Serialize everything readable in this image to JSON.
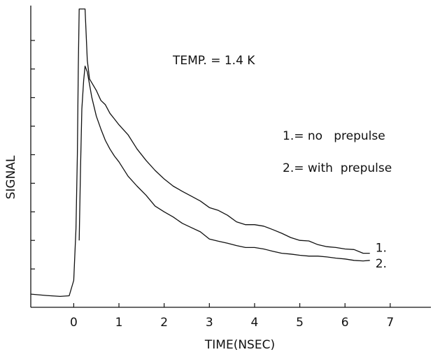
{
  "chart_data": {
    "type": "line",
    "xlabel": "TIME(NSEC)",
    "ylabel": "SIGNAL",
    "xlim": [
      -0.95,
      7.9
    ],
    "ylim": [
      0,
      10
    ],
    "x_ticks": [
      0,
      1,
      2,
      3,
      4,
      5,
      6,
      7
    ],
    "x_tick_labels": [
      "0",
      "1",
      "2",
      "3",
      "4",
      "5",
      "6",
      "7"
    ],
    "y_ticks": [
      1,
      2,
      3,
      4,
      5,
      6,
      7,
      8,
      9
    ],
    "grid": false,
    "legend": "right, text annotation",
    "annotations": {
      "temp": "TEMP. = 1.4 K",
      "legend_line1": "1.= no   prepulse",
      "legend_line2": "2.= with  prepulse"
    },
    "series": [
      {
        "name": "1.",
        "label": "1.",
        "x": [
          -0.95,
          -0.6,
          -0.3,
          -0.1,
          0.0,
          0.05,
          0.08,
          0.1,
          0.12,
          0.15,
          0.25,
          0.3,
          0.35,
          0.5,
          0.6,
          0.7,
          0.8,
          0.9,
          1.0,
          1.2,
          1.4,
          1.6,
          1.8,
          2.0,
          2.2,
          2.4,
          2.6,
          2.8,
          3.0,
          3.2,
          3.4,
          3.6,
          3.8,
          4.0,
          4.2,
          4.4,
          4.6,
          4.8,
          5.0,
          5.2,
          5.4,
          5.6,
          5.8,
          6.0,
          6.2,
          6.4,
          6.55
        ],
        "y": [
          0.12,
          0.07,
          0.04,
          0.06,
          0.6,
          2.4,
          5.0,
          8.0,
          10.1,
          10.1,
          10.1,
          8.3,
          7.65,
          7.25,
          6.9,
          6.75,
          6.45,
          6.25,
          6.05,
          5.7,
          5.2,
          4.8,
          4.45,
          4.15,
          3.9,
          3.72,
          3.55,
          3.38,
          3.15,
          3.05,
          2.88,
          2.65,
          2.55,
          2.55,
          2.5,
          2.38,
          2.25,
          2.1,
          2.0,
          1.98,
          1.85,
          1.78,
          1.75,
          1.7,
          1.68,
          1.55,
          1.55
        ]
      },
      {
        "name": "2.",
        "label": "2.",
        "x": [
          0.12,
          0.15,
          0.18,
          0.22,
          0.25,
          0.3,
          0.4,
          0.5,
          0.6,
          0.7,
          0.8,
          0.9,
          1.0,
          1.2,
          1.4,
          1.6,
          1.8,
          2.0,
          2.2,
          2.4,
          2.6,
          2.8,
          3.0,
          3.2,
          3.4,
          3.6,
          3.8,
          4.0,
          4.2,
          4.4,
          4.6,
          4.8,
          5.0,
          5.2,
          5.4,
          5.6,
          5.8,
          6.0,
          6.2,
          6.4,
          6.55
        ],
        "y": [
          2.0,
          4.5,
          6.6,
          7.6,
          8.1,
          7.9,
          7.0,
          6.35,
          5.9,
          5.5,
          5.2,
          4.95,
          4.75,
          4.25,
          3.9,
          3.58,
          3.2,
          3.0,
          2.82,
          2.6,
          2.45,
          2.3,
          2.05,
          1.97,
          1.9,
          1.82,
          1.75,
          1.75,
          1.7,
          1.62,
          1.55,
          1.52,
          1.48,
          1.45,
          1.45,
          1.42,
          1.38,
          1.35,
          1.3,
          1.28,
          1.3
        ]
      }
    ]
  }
}
